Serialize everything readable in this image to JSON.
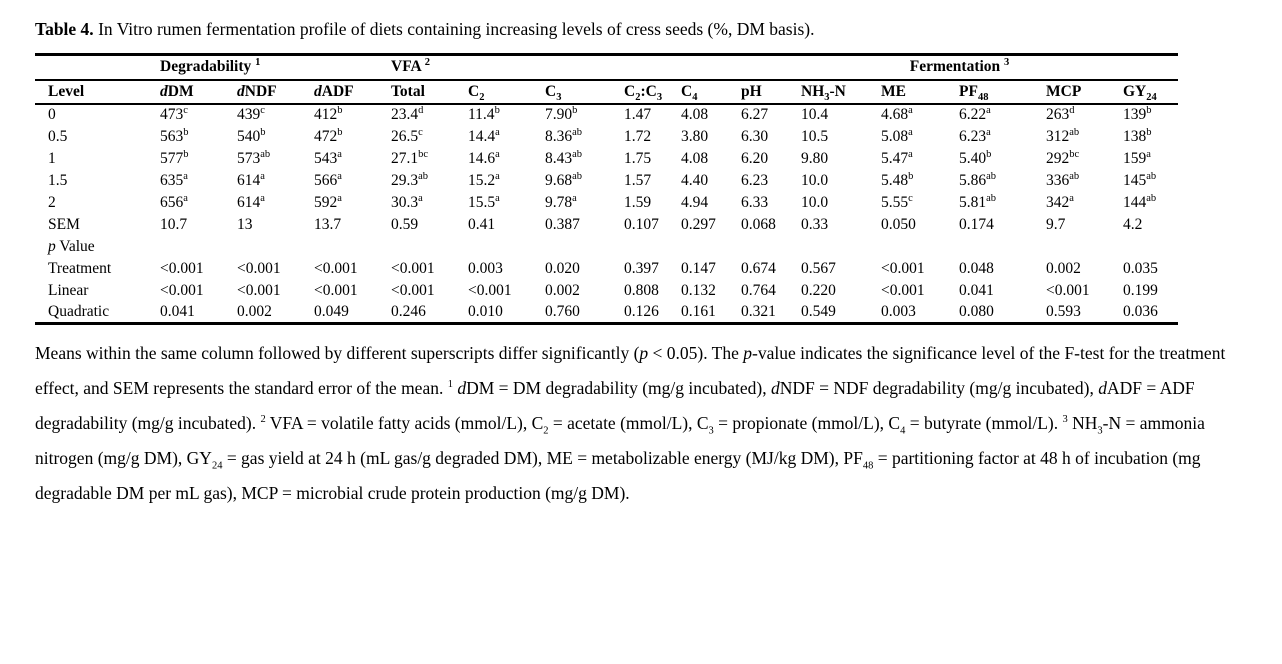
{
  "page": {
    "title_label": "Table 4.",
    "title_text": " In Vitro rumen fermentation profile of diets containing increasing levels of cress seeds (%, DM basis)."
  },
  "table": {
    "spanners": [
      {
        "label": "Degradability ^1",
        "name": "degradability",
        "span": 3,
        "align": "left"
      },
      {
        "label": "VFA ^2",
        "name": "vfa",
        "span": 5,
        "align": "left"
      },
      {
        "label": "Fermentation ^3",
        "name": "fermentation",
        "span": 6,
        "align": "center"
      }
    ],
    "columns": [
      "Level",
      "*d*DM",
      "*d*NDF",
      "*d*ADF",
      "Total",
      "C_2",
      "C_3",
      "C_2:C_3",
      "C_4",
      "pH",
      "NH_3-N",
      "ME",
      "PF_48",
      "MCP",
      "GY_24"
    ],
    "rows": [
      {
        "label": "0",
        "values": [
          "473^c",
          "439^c",
          "412^b",
          "23.4^d",
          "11.4^b",
          "7.90^b",
          "1.47",
          "4.08",
          "6.27",
          "10.4",
          "4.68^a",
          "6.22^a",
          "263^d",
          "139^b"
        ]
      },
      {
        "label": "0.5",
        "values": [
          "563^b",
          "540^b",
          "472^b",
          "26.5^c",
          "14.4^a",
          "8.36^ab",
          "1.72",
          "3.80",
          "6.30",
          "10.5",
          "5.08^a",
          "6.23^a",
          "312^ab",
          "138^b"
        ]
      },
      {
        "label": "1",
        "values": [
          "577^b",
          "573^ab",
          "543^a",
          "27.1^bc",
          "14.6^a",
          "8.43^ab",
          "1.75",
          "4.08",
          "6.20",
          "9.80",
          "5.47^a",
          "5.40^b",
          "292^bc",
          "159^a"
        ]
      },
      {
        "label": "1.5",
        "values": [
          "635^a",
          "614^a",
          "566^a",
          "29.3^ab",
          "15.2^a",
          "9.68^ab",
          "1.57",
          "4.40",
          "6.23",
          "10.0",
          "5.48^b",
          "5.86^ab",
          "336^ab",
          "145^ab"
        ]
      },
      {
        "label": "2",
        "values": [
          "656^a",
          "614^a",
          "592^a",
          "30.3^a",
          "15.5^a",
          "9.78^a",
          "1.59",
          "4.94",
          "6.33",
          "10.0",
          "5.55^c",
          "5.81^ab",
          "342^a",
          "144^ab"
        ]
      },
      {
        "label": "SEM",
        "values": [
          "10.7",
          "13",
          "13.7",
          "0.59",
          "0.41",
          "0.387",
          "0.107",
          "0.297",
          "0.068",
          "0.33",
          "0.050",
          "0.174",
          "9.7",
          "4.2"
        ]
      },
      {
        "label": "*p* Value",
        "values": [
          "",
          "",
          "",
          "",
          "",
          "",
          "",
          "",
          "",
          "",
          "",
          "",
          "",
          ""
        ]
      },
      {
        "label": "Treatment",
        "values": [
          "<0.001",
          "<0.001",
          "<0.001",
          "<0.001",
          "0.003",
          "0.020",
          "0.397",
          "0.147",
          "0.674",
          "0.567",
          "<0.001",
          "0.048",
          "0.002",
          "0.035"
        ]
      },
      {
        "label": "Linear",
        "values": [
          "<0.001",
          "<0.001",
          "<0.001",
          "<0.001",
          "<0.001",
          "0.002",
          "0.808",
          "0.132",
          "0.764",
          "0.220",
          "<0.001",
          "0.041",
          "<0.001",
          "0.199"
        ]
      },
      {
        "label": "Quadratic",
        "values": [
          "0.041",
          "0.002",
          "0.049",
          "0.246",
          "0.010",
          "0.760",
          "0.126",
          "0.161",
          "0.321",
          "0.549",
          "0.003",
          "0.080",
          "0.593",
          "0.036"
        ]
      }
    ]
  },
  "footnote": "Means within the same column followed by different superscripts differ significantly (*p* < 0.05). The *p*-value indicates the significance level of the F-test for the treatment effect, and SEM represents the standard error of the mean. ^1 *d*DM = DM degradability (mg/g incubated), *d*NDF = NDF degradability (mg/g incubated), *d*ADF = ADF degradability (mg/g incubated). ^2 VFA = volatile fatty acids (mmol/L), C_2 = acetate (mmol/L), C_3 = propionate (mmol/L), C_4 = butyrate (mmol/L). ^3 NH_3-N = ammonia nitrogen (mg/g DM), GY_24 = gas yield at 24 h (mL gas/g degraded DM), ME = metabolizable energy (MJ/kg DM), PF_48 = partitioning factor at 48 h of incubation (mg degradable DM per mL gas), MCP = microbial crude protein production (mg/g DM)."
}
